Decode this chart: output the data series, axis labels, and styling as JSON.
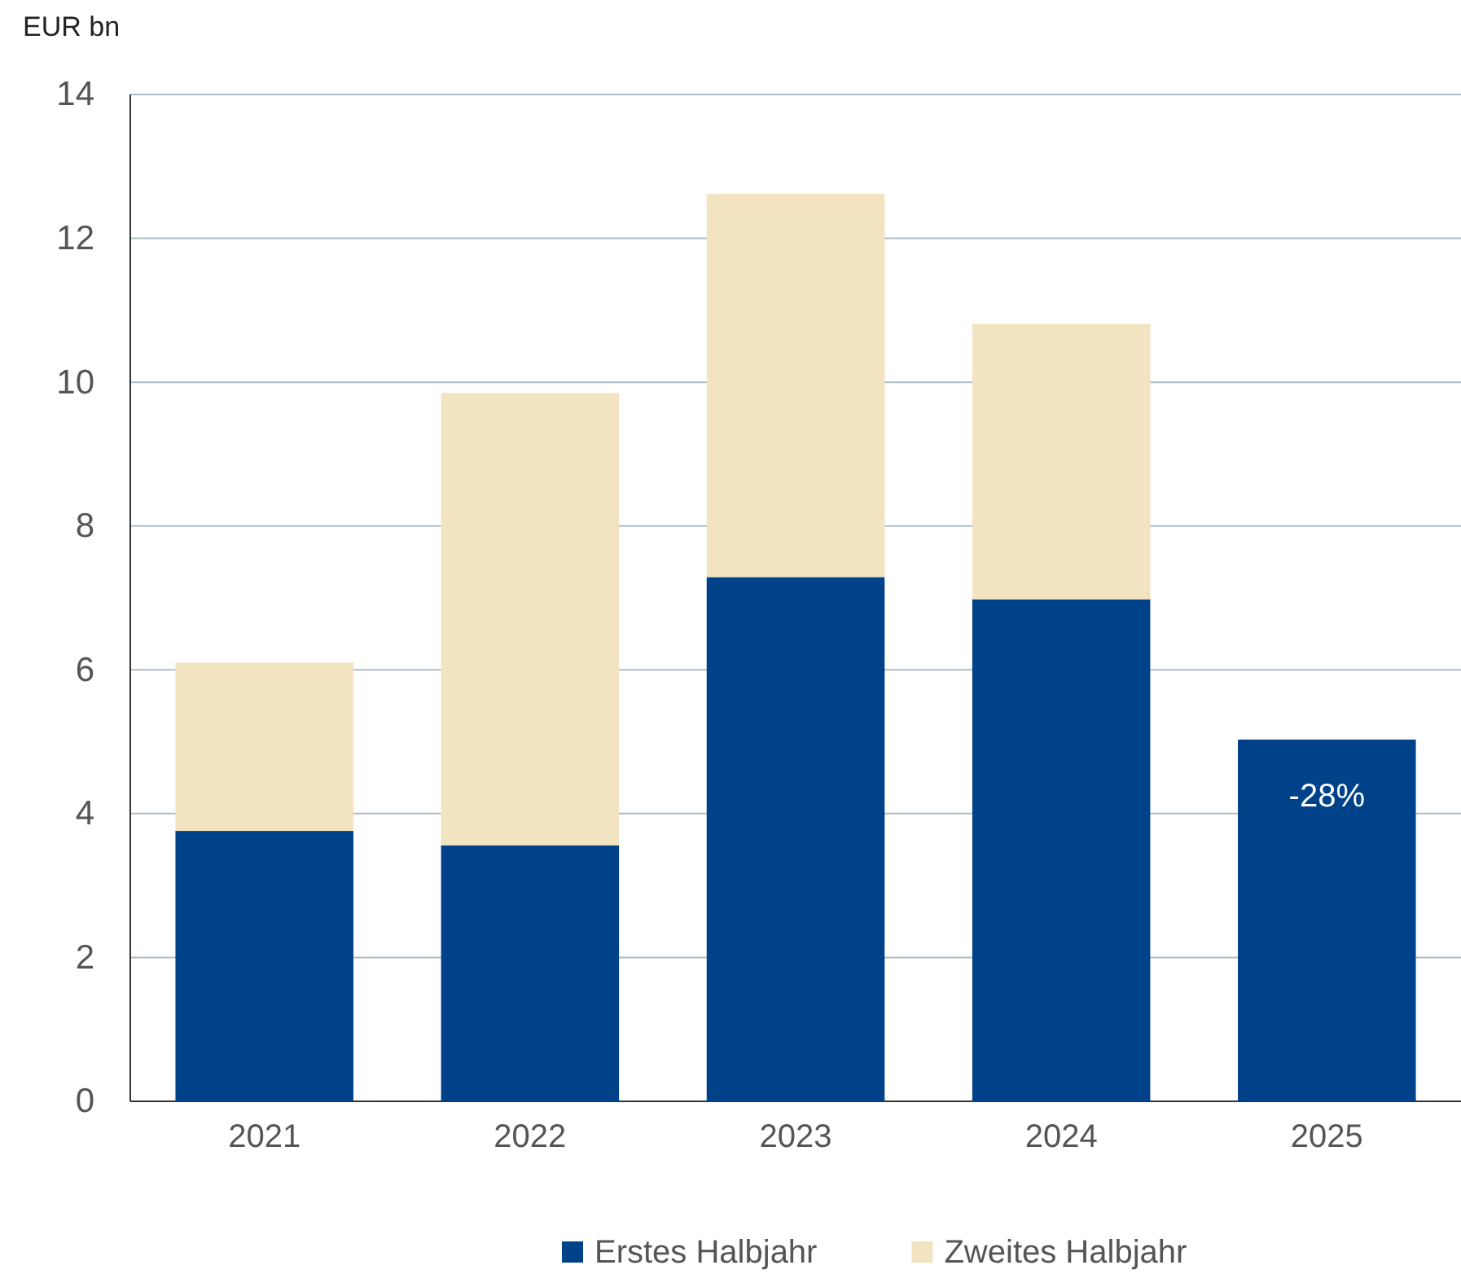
{
  "chart_data": {
    "type": "bar",
    "ylabel": "EUR bn",
    "categories": [
      "2021",
      "2022",
      "2023",
      "2024",
      "2025"
    ],
    "series": [
      {
        "name": "Erstes Halbjahr",
        "color": "#00428a",
        "values": [
          3.76,
          3.56,
          7.29,
          6.98,
          5.03
        ]
      },
      {
        "name": "Zweites Halbjahr",
        "color": "#f2e4c0",
        "values": [
          2.34,
          6.29,
          5.33,
          3.83,
          null
        ]
      }
    ],
    "stacked": true,
    "ylim": [
      0,
      14
    ],
    "yticks": [
      0,
      2,
      4,
      6,
      8,
      10,
      12,
      14
    ],
    "grid": "y",
    "legend": "bottom",
    "annotations": [
      "-28%"
    ]
  }
}
